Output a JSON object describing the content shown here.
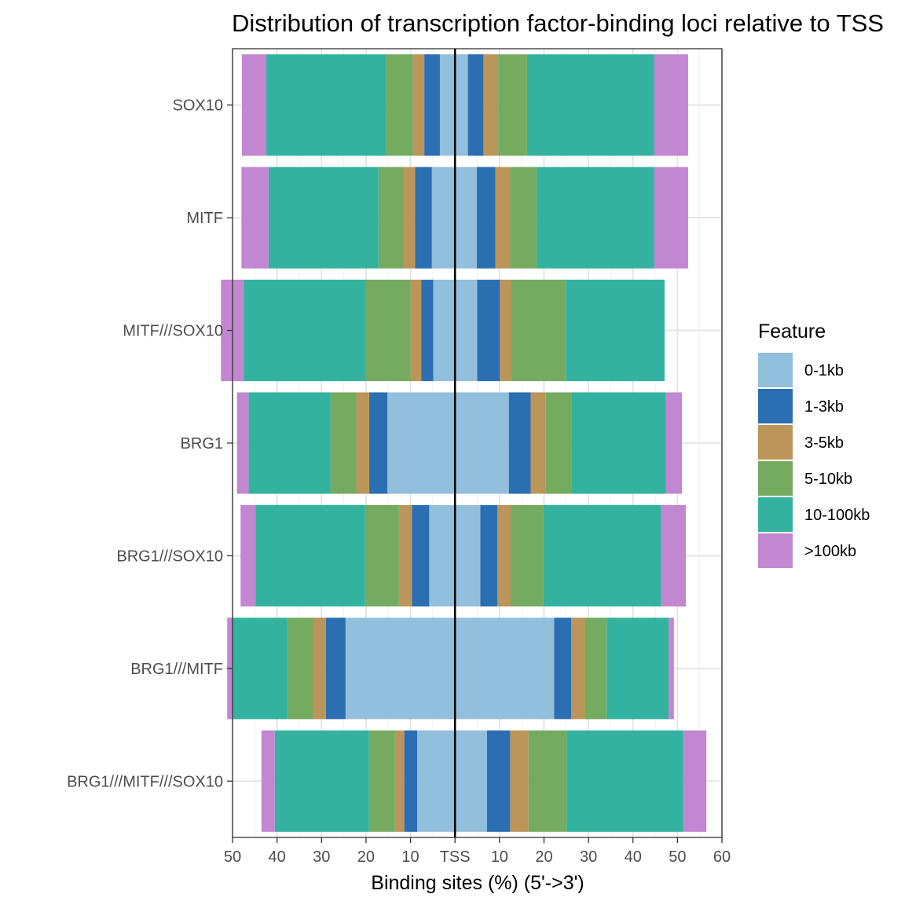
{
  "chart_data": {
    "type": "bar",
    "orientation": "horizontal-diverging",
    "title": "Distribution of transcription factor-binding loci relative to TSS",
    "xlabel": "Binding sites (%) (5'->3')",
    "ylabel": "",
    "xlim": [
      -50,
      60
    ],
    "x_ticks": [
      -50,
      -40,
      -30,
      -20,
      -10,
      0,
      10,
      20,
      30,
      40,
      50,
      60
    ],
    "x_tick_labels": [
      "50",
      "40",
      "30",
      "20",
      "10",
      "TSS",
      "10",
      "20",
      "30",
      "40",
      "50",
      "60"
    ],
    "categories": [
      "SOX10",
      "MITF",
      "MITF///SOX10",
      "BRG1",
      "BRG1///SOX10",
      "BRG1///MITF",
      "BRG1///MITF///SOX10"
    ],
    "legend": {
      "title": "Feature",
      "position": "right"
    },
    "grid": true,
    "colors": {
      "0-1kb": "#92bfdb",
      "1-3kb": "#2b6eb1",
      "3-5kb": "#bb9559",
      "5-10kb": "#75ab60",
      "10-100kb": "#33b29f",
      ">100kb": "#c287d1"
    },
    "series": [
      {
        "name": "0-1kb",
        "upstream": [
          3.4,
          5.2,
          4.9,
          15.2,
          5.8,
          24.6,
          8.5
        ],
        "downstream": [
          2.9,
          4.9,
          5.0,
          12.1,
          5.7,
          22.3,
          7.2
        ]
      },
      {
        "name": "1-3kb",
        "upstream": [
          3.5,
          3.8,
          2.7,
          4.1,
          3.9,
          4.4,
          2.9
        ],
        "downstream": [
          3.5,
          4.2,
          5.1,
          4.9,
          3.8,
          3.8,
          5.2
        ]
      },
      {
        "name": "3-5kb",
        "upstream": [
          2.6,
          2.6,
          2.4,
          2.9,
          2.9,
          2.9,
          2.1
        ],
        "downstream": [
          3.3,
          3.3,
          2.5,
          3.4,
          3.0,
          3.1,
          4.1
        ]
      },
      {
        "name": "5-10kb",
        "upstream": [
          6.0,
          5.6,
          10.0,
          5.8,
          7.6,
          5.8,
          5.8
        ],
        "downstream": [
          6.5,
          6.0,
          12.3,
          5.8,
          7.4,
          4.9,
          8.6
        ]
      },
      {
        "name": "10-100kb",
        "upstream": [
          26.9,
          24.7,
          27.5,
          18.4,
          24.6,
          12.4,
          21.2
        ],
        "downstream": [
          28.6,
          26.4,
          22.2,
          21.2,
          26.4,
          13.9,
          26.2
        ]
      },
      {
        ">100kb_note": null,
        "name": ">100kb",
        "upstream": [
          5.5,
          6.1,
          5.1,
          2.6,
          3.4,
          1.1,
          3.0
        ],
        "downstream": [
          7.6,
          7.6,
          0.0,
          3.6,
          5.6,
          1.2,
          5.2
        ]
      }
    ]
  }
}
